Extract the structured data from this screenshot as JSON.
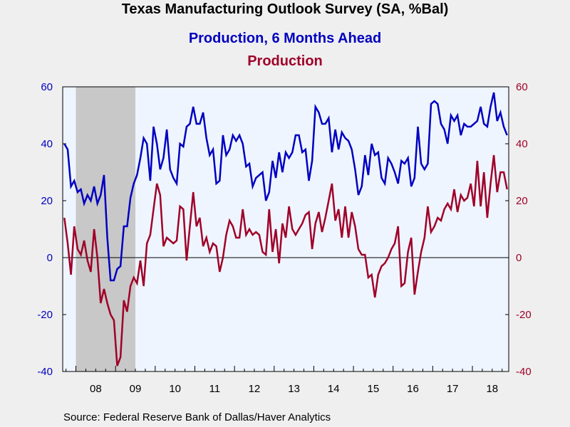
{
  "chart_data": {
    "type": "line",
    "title": "Texas Manufacturing Outlook Survey (SA, %Bal)",
    "source": "Source:  Federal Reserve Bank of Dallas/Haver Analytics",
    "x_start": "2007-09",
    "x_frequency": "monthly",
    "x_ticks": [
      "08",
      "09",
      "10",
      "11",
      "12",
      "13",
      "14",
      "15",
      "16",
      "17",
      "18"
    ],
    "y_ticks": [
      "60",
      "40",
      "20",
      "0",
      "-20",
      "-40"
    ],
    "ylim": [
      -40,
      60
    ],
    "recession_shading": {
      "from": "2008-01",
      "to": "2009-06",
      "color": "#c8c8c8"
    },
    "plot_background": "#eef5ff",
    "series": [
      {
        "name": "Production, 6 Months Ahead",
        "color": "#0000c0",
        "axis": "left",
        "values": [
          40,
          38,
          25,
          27,
          23,
          24,
          19,
          22,
          20,
          25,
          19,
          22,
          29,
          7,
          -8,
          -8,
          -4,
          -3,
          11,
          11,
          21,
          26,
          29,
          35,
          42,
          40,
          27,
          46,
          40,
          31,
          35,
          45,
          31,
          28,
          26,
          40,
          39,
          46,
          47,
          53,
          47,
          47,
          51,
          42,
          36,
          38,
          26,
          27,
          43,
          36,
          38,
          43,
          41,
          43,
          40,
          32,
          33,
          25,
          28,
          29,
          30,
          20,
          23,
          34,
          28,
          37,
          30,
          37,
          35,
          37,
          43,
          43,
          37,
          38,
          27,
          34,
          53,
          51,
          47,
          47,
          49,
          37,
          45,
          38,
          44,
          42,
          41,
          38,
          31,
          22,
          25,
          36,
          29,
          40,
          36,
          37,
          28,
          26,
          35,
          33,
          30,
          26,
          34,
          33,
          35,
          25,
          28,
          46,
          33,
          31,
          33,
          54,
          55,
          54,
          47,
          45,
          40,
          50,
          48,
          50,
          43,
          47,
          46,
          46,
          47,
          48,
          53,
          47,
          46,
          53,
          58,
          48,
          51,
          46,
          43
        ]
      },
      {
        "name": "Production",
        "color": "#a00028",
        "axis": "right",
        "values": [
          14,
          5,
          -6,
          11,
          3,
          1,
          6,
          -1,
          -5,
          10,
          0,
          -16,
          -11,
          -16,
          -20,
          -22,
          -38,
          -35,
          -15,
          -19,
          -10,
          -7,
          -9,
          -1,
          -10,
          5,
          8,
          17,
          26,
          22,
          4,
          7,
          6,
          5,
          6,
          18,
          17,
          -1,
          11,
          23,
          11,
          14,
          4,
          7,
          2,
          5,
          4,
          -5,
          0,
          8,
          13,
          11,
          7,
          7,
          17,
          8,
          10,
          8,
          9,
          8,
          2,
          1,
          17,
          2,
          10,
          -2,
          12,
          7,
          18,
          10,
          8,
          10,
          12,
          15,
          16,
          3,
          12,
          16,
          9,
          14,
          20,
          26,
          13,
          17,
          7,
          18,
          7,
          16,
          11,
          3,
          1,
          1,
          -7,
          -6,
          -14,
          -6,
          -3,
          -2,
          0,
          3,
          5,
          11,
          -10,
          -9,
          2,
          7,
          -13,
          -5,
          2,
          7,
          18,
          9,
          11,
          14,
          13,
          17,
          19,
          17,
          24,
          16,
          22,
          20,
          21,
          26,
          18,
          34,
          18,
          30,
          14,
          26,
          36,
          23,
          30,
          30,
          24
        ]
      }
    ]
  }
}
